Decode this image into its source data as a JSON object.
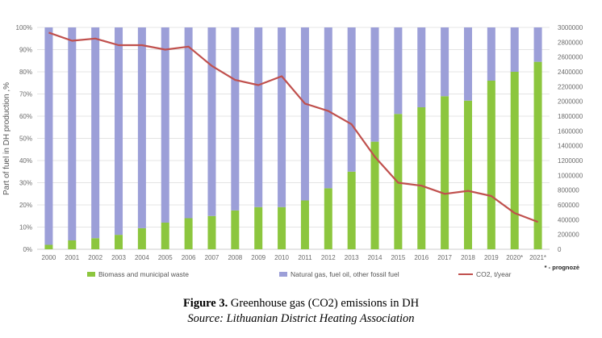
{
  "figure": {
    "label": "Figure 3.",
    "caption": " Greenhouse gas (CO2) emissions in DH",
    "source": "Source: Lithuanian District Heating Association",
    "footnote": "* - prognozė"
  },
  "chart_data": {
    "type": "bar",
    "stacked_percent": true,
    "categories": [
      "2000",
      "2001",
      "2002",
      "2003",
      "2004",
      "2005",
      "2006",
      "2007",
      "2008",
      "2009",
      "2010",
      "2011",
      "2012",
      "2013",
      "2014",
      "2015",
      "2016",
      "2017",
      "2018",
      "2019",
      "2020*",
      "2021*"
    ],
    "ylabel": "Part of fuel in DH production ,%",
    "ylim": [
      0,
      100
    ],
    "yticks": [
      "0%",
      "10%",
      "20%",
      "30%",
      "40%",
      "50%",
      "60%",
      "70%",
      "80%",
      "90%",
      "100%"
    ],
    "y2lim": [
      0,
      3000000
    ],
    "y2ticks": [
      "0",
      "200000",
      "400000",
      "600000",
      "800000",
      "1000000",
      "1200000",
      "1400000",
      "1600000",
      "1800000",
      "2000000",
      "2200000",
      "2400000",
      "2600000",
      "2800000",
      "3000000"
    ],
    "grid": true,
    "legend_position": "bottom",
    "series": [
      {
        "name": "Biomass and municipal waste",
        "color": "#8cc63e",
        "axis": "left",
        "values": [
          2,
          4,
          5,
          6.5,
          9.5,
          12,
          14,
          15,
          17.5,
          19,
          19,
          22,
          27.5,
          35,
          48.5,
          61,
          64,
          69,
          67,
          76,
          80,
          84.5
        ]
      },
      {
        "name": "Natural gas, fuel oil, other fossil fuel",
        "color": "#9c9fd8",
        "axis": "left",
        "values": [
          98,
          96,
          95,
          93.5,
          90.5,
          88,
          86,
          85,
          82.5,
          81,
          81,
          78,
          72.5,
          65,
          51.5,
          39,
          36,
          31,
          33,
          24,
          20,
          15.5
        ]
      },
      {
        "name": "CO2, t/year",
        "color": "#c0504d",
        "axis": "right",
        "type": "line",
        "values": [
          2930000,
          2820000,
          2850000,
          2760000,
          2760000,
          2700000,
          2740000,
          2480000,
          2290000,
          2220000,
          2340000,
          1970000,
          1870000,
          1690000,
          1250000,
          900000,
          860000,
          750000,
          790000,
          720000,
          490000,
          370000
        ]
      }
    ]
  }
}
